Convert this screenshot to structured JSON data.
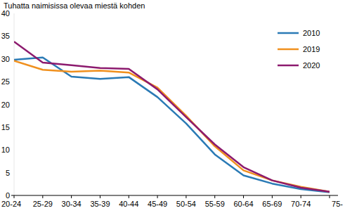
{
  "chart_data": {
    "type": "line",
    "y_label": "Tuhatta naimisissa olevaa miestä kohden",
    "categories": [
      "20-24",
      "25-29",
      "30-34",
      "35-39",
      "40-44",
      "45-49",
      "50-54",
      "55-59",
      "60-64",
      "65-69",
      "70-74",
      "75-"
    ],
    "series": [
      {
        "name": "2010",
        "color": "#2a7ab5",
        "values": [
          29.8,
          30.3,
          26.1,
          25.6,
          26.0,
          21.6,
          15.8,
          9.0,
          4.4,
          2.6,
          1.4,
          0.7
        ]
      },
      {
        "name": "2019",
        "color": "#f0901e",
        "values": [
          29.6,
          27.6,
          27.2,
          27.4,
          27.0,
          23.7,
          17.5,
          10.8,
          5.5,
          3.3,
          1.9,
          0.8
        ]
      },
      {
        "name": "2020",
        "color": "#8c1a6e",
        "values": [
          33.8,
          29.2,
          28.6,
          28.0,
          27.8,
          23.3,
          17.2,
          11.2,
          6.2,
          3.3,
          1.7,
          0.8
        ]
      }
    ],
    "ylim": [
      0,
      40
    ],
    "yticks": [
      0,
      5,
      10,
      15,
      20,
      25,
      30,
      35,
      40
    ],
    "grid": false,
    "legend": "upper-right"
  }
}
